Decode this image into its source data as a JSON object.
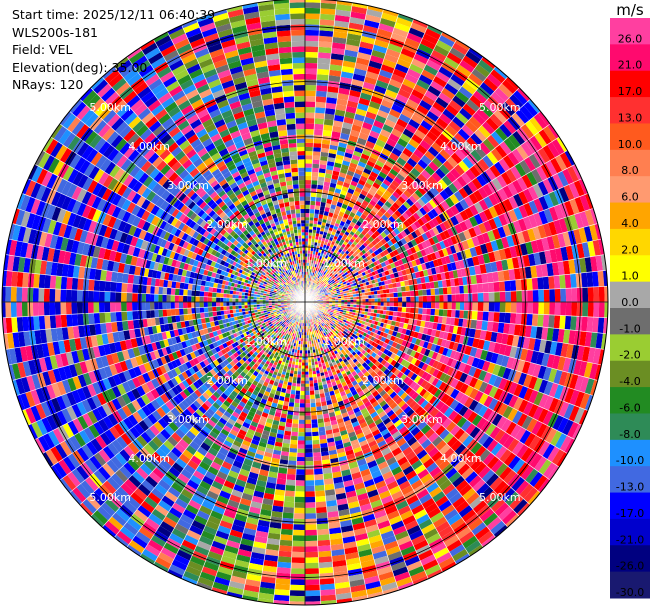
{
  "header": {
    "start_time": "Start time: 2025/12/11 06:40:39",
    "site": "WLS200s-181",
    "field": "Field: VEL",
    "elevation": "Elevation(deg): 35.00",
    "nrays": "NRays: 120"
  },
  "chart_data": {
    "type": "heatmap",
    "projection": "polar-ppi",
    "field": "VEL",
    "units": "m/s",
    "n_rays": 120,
    "max_range_km": 5.5,
    "range_rings_km": [
      1,
      2,
      3,
      4,
      5
    ],
    "ring_labels": [
      "1.00km",
      "2.00km",
      "3.00km",
      "4.00km",
      "5.00km"
    ],
    "ring_label_azimuths_deg": [
      315,
      45,
      135,
      225
    ],
    "colorbar": {
      "unit_label": "m/s",
      "ticks": [
        "26.0",
        "21.0",
        "17.0",
        "13.0",
        "10.0",
        "8.0",
        "6.0",
        "4.0",
        "2.0",
        "1.0",
        "0.0",
        "-1.0",
        "-2.0",
        "-4.0",
        "-6.0",
        "-8.0",
        "-10.0",
        "-13.0",
        "-17.0",
        "-21.0",
        "-26.0",
        "-30.0"
      ],
      "colors": [
        "#ff3fa0",
        "#ff0a6e",
        "#ff0000",
        "#ff3030",
        "#ff5a1e",
        "#ff7f50",
        "#ff9a70",
        "#ffa500",
        "#ffd700",
        "#ffff00",
        "#a8a8a8",
        "#6e6e6e",
        "#9acd32",
        "#6b8e23",
        "#228b22",
        "#2e8b57",
        "#1e90ff",
        "#4169e1",
        "#0000ff",
        "#0000cd",
        "#000080",
        "#191970"
      ]
    },
    "pattern_notes": "Noisy velocity field; coherent negative (blue) region toward west, positive (pink) region toward east."
  }
}
